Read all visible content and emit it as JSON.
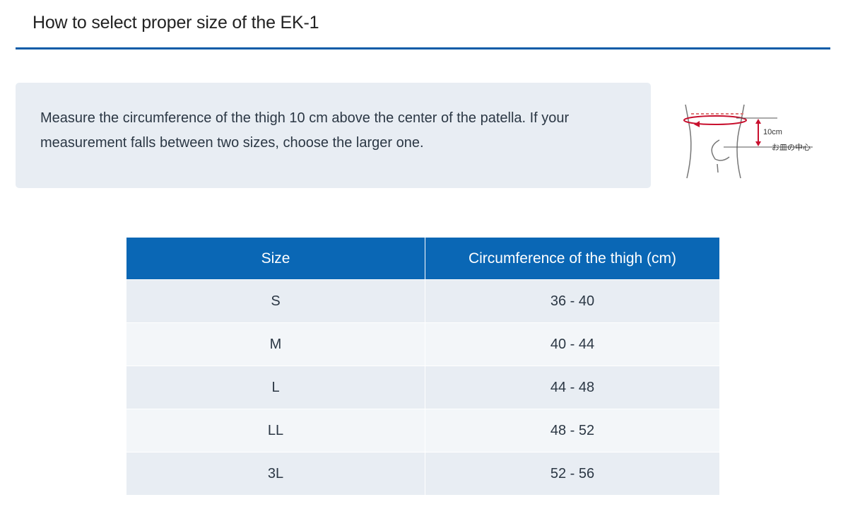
{
  "header": {
    "title": "How to select proper size of the EK-1"
  },
  "info": {
    "text": "Measure the circumference of the thigh 10 cm above the center of the patella. If your measurement falls between two sizes, choose the larger one.",
    "diagram": {
      "distance_label": "10cm",
      "center_label": "お皿の中心"
    }
  },
  "colors": {
    "accent": "#0a5ca8",
    "header_bg": "#0a67b5",
    "arrow": "#c8102e"
  },
  "table": {
    "headers": [
      "Size",
      "Circumference of the thigh (cm)"
    ],
    "rows": [
      [
        "S",
        "36 - 40"
      ],
      [
        "M",
        "40 - 44"
      ],
      [
        "L",
        "44 - 48"
      ],
      [
        "LL",
        "48 - 52"
      ],
      [
        "3L",
        "52 - 56"
      ]
    ]
  }
}
